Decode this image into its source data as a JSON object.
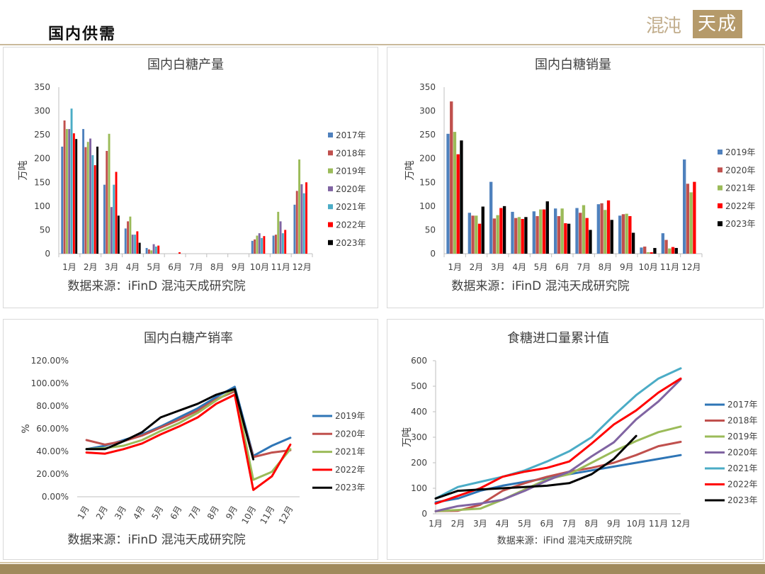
{
  "page": {
    "title": "国内供需",
    "logo_text_left": "混沌",
    "logo_text_box": "天成"
  },
  "chart_data": [
    {
      "id": "production",
      "type": "bar",
      "title": "国内白糖产量",
      "ylabel": "万吨",
      "source": "数据来源：iFinD 混沌天成研究院",
      "ylim": [
        0,
        350
      ],
      "yticks": [
        0,
        50,
        100,
        150,
        200,
        250,
        300,
        350
      ],
      "categories": [
        "1月",
        "2月",
        "3月",
        "4月",
        "5月",
        "6月",
        "7月",
        "8月",
        "9月",
        "10月",
        "11月",
        "12月"
      ],
      "series": [
        {
          "name": "2017年",
          "color": "#4F81BD",
          "values": [
            225,
            262,
            145,
            53,
            12,
            0,
            0,
            0,
            0,
            27,
            38,
            103
          ]
        },
        {
          "name": "2018年",
          "color": "#C0504D",
          "values": [
            280,
            224,
            216,
            68,
            9,
            0,
            0,
            0,
            0,
            30,
            40,
            132
          ]
        },
        {
          "name": "2019年",
          "color": "#9BBB59",
          "values": [
            262,
            235,
            252,
            78,
            7,
            0,
            0,
            0,
            0,
            38,
            88,
            198
          ]
        },
        {
          "name": "2020年",
          "color": "#8064A2",
          "values": [
            262,
            242,
            98,
            40,
            20,
            0,
            0,
            0,
            0,
            43,
            68,
            146
          ]
        },
        {
          "name": "2021年",
          "color": "#4BACC6",
          "values": [
            305,
            207,
            145,
            40,
            15,
            0,
            0,
            0,
            0,
            33,
            43,
            127
          ]
        },
        {
          "name": "2022年",
          "color": "#FF0000",
          "values": [
            253,
            186,
            172,
            47,
            17,
            3,
            0,
            0,
            0,
            37,
            50,
            150
          ]
        },
        {
          "name": "2023年",
          "color": "#000000",
          "values": [
            241,
            225,
            80,
            23,
            0,
            0,
            0,
            0,
            0,
            0,
            0,
            0
          ]
        }
      ]
    },
    {
      "id": "sales",
      "type": "bar",
      "title": "国内白糖销量",
      "ylabel": "万吨",
      "source": "数据来源：iFinD 混沌天成研究院",
      "ylim": [
        0,
        350
      ],
      "yticks": [
        0,
        50,
        100,
        150,
        200,
        250,
        300,
        350
      ],
      "categories": [
        "1月",
        "2月",
        "3月",
        "4月",
        "5月",
        "6月",
        "7月",
        "8月",
        "9月",
        "10月",
        "11月",
        "12月"
      ],
      "series": [
        {
          "name": "2019年",
          "color": "#4F81BD",
          "values": [
            252,
            86,
            151,
            88,
            89,
            95,
            96,
            104,
            80,
            13,
            43,
            198
          ]
        },
        {
          "name": "2020年",
          "color": "#C0504D",
          "values": [
            320,
            80,
            74,
            75,
            79,
            79,
            86,
            106,
            83,
            15,
            29,
            147
          ]
        },
        {
          "name": "2021年",
          "color": "#9BBB59",
          "values": [
            256,
            80,
            81,
            77,
            93,
            95,
            102,
            92,
            84,
            3,
            11,
            129
          ]
        },
        {
          "name": "2022年",
          "color": "#FF0000",
          "values": [
            209,
            63,
            96,
            73,
            93,
            64,
            75,
            112,
            79,
            3,
            14,
            151
          ]
        },
        {
          "name": "2023年",
          "color": "#000000",
          "values": [
            238,
            99,
            100,
            77,
            110,
            63,
            50,
            71,
            44,
            12,
            12,
            0
          ]
        }
      ]
    },
    {
      "id": "ratio",
      "type": "line",
      "title": "国内白糖产销率",
      "ylabel": "%",
      "source": "数据来源：iFinD 混沌天成研究院",
      "ylim": [
        0,
        1.2
      ],
      "yticks": [
        "0.00%",
        "20.00%",
        "40.00%",
        "60.00%",
        "80.00%",
        "100.00%",
        "120.00%"
      ],
      "categories": [
        "1月",
        "2月",
        "3月",
        "4月",
        "5月",
        "6月",
        "7月",
        "8月",
        "9月",
        "10月",
        "11月",
        "12月"
      ],
      "series": [
        {
          "name": "2019年",
          "color": "#2E75B6",
          "values": [
            0.42,
            0.45,
            0.5,
            0.55,
            0.62,
            0.7,
            0.78,
            0.88,
            0.97,
            0.36,
            0.45,
            0.52
          ]
        },
        {
          "name": "2020年",
          "color": "#C0504D",
          "values": [
            0.5,
            0.46,
            0.49,
            0.54,
            0.61,
            0.68,
            0.76,
            0.86,
            0.93,
            0.35,
            0.39,
            0.41
          ]
        },
        {
          "name": "2021年",
          "color": "#9BBB59",
          "values": [
            0.42,
            0.43,
            0.45,
            0.5,
            0.58,
            0.65,
            0.74,
            0.85,
            0.95,
            0.15,
            0.22,
            0.42
          ]
        },
        {
          "name": "2022年",
          "color": "#FF0000",
          "values": [
            0.39,
            0.38,
            0.42,
            0.47,
            0.55,
            0.62,
            0.7,
            0.82,
            0.9,
            0.06,
            0.18,
            0.46
          ]
        },
        {
          "name": "2023年",
          "color": "#000000",
          "values": [
            0.42,
            0.42,
            0.49,
            0.57,
            0.7,
            0.76,
            0.82,
            0.9,
            0.95,
            0.33,
            null,
            null
          ]
        }
      ]
    },
    {
      "id": "imports",
      "type": "line",
      "title": "食糖进口量累计值",
      "ylabel": "万吨",
      "source": "数据来源：iFind  混沌天成研究院",
      "ylim": [
        0,
        600
      ],
      "yticks": [
        0,
        100,
        200,
        300,
        400,
        500,
        600
      ],
      "categories": [
        "1月",
        "2月",
        "3月",
        "4月",
        "5月",
        "6月",
        "7月",
        "8月",
        "9月",
        "10月",
        "11月",
        "12月"
      ],
      "series": [
        {
          "name": "2017年",
          "color": "#2E75B6",
          "values": [
            45,
            60,
            90,
            110,
            125,
            140,
            155,
            170,
            185,
            200,
            215,
            230
          ]
        },
        {
          "name": "2018年",
          "color": "#C0504D",
          "values": [
            10,
            12,
            35,
            90,
            120,
            145,
            165,
            180,
            200,
            230,
            265,
            282
          ]
        },
        {
          "name": "2019年",
          "color": "#9BBB59",
          "values": [
            10,
            15,
            20,
            55,
            95,
            135,
            155,
            200,
            245,
            285,
            320,
            342
          ]
        },
        {
          "name": "2020年",
          "color": "#8064A2",
          "values": [
            10,
            30,
            40,
            55,
            90,
            130,
            165,
            225,
            280,
            370,
            440,
            527
          ]
        },
        {
          "name": "2021年",
          "color": "#4BACC6",
          "values": [
            60,
            105,
            125,
            145,
            170,
            205,
            245,
            300,
            385,
            465,
            530,
            570
          ]
        },
        {
          "name": "2022年",
          "color": "#FF0000",
          "values": [
            40,
            70,
            100,
            145,
            165,
            180,
            205,
            275,
            350,
            405,
            475,
            530
          ]
        },
        {
          "name": "2023年",
          "color": "#000000",
          "values": [
            60,
            90,
            95,
            100,
            105,
            110,
            120,
            155,
            215,
            305,
            null,
            null
          ]
        }
      ]
    }
  ]
}
